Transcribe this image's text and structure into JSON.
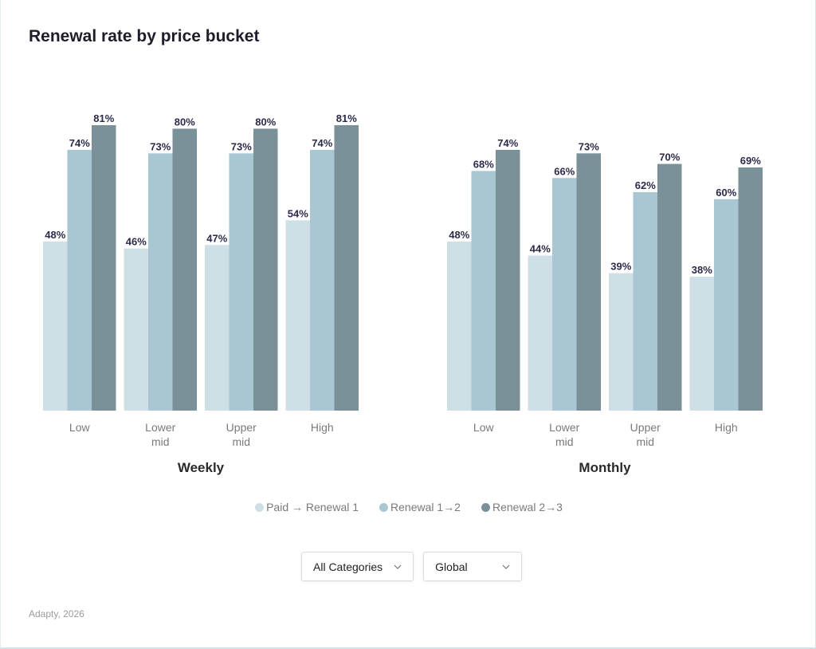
{
  "title": "Renewal rate by price bucket",
  "chart_data": [
    {
      "type": "bar",
      "subtitle": "Weekly",
      "categories": [
        "Low",
        "Lower mid",
        "Upper mid",
        "High"
      ],
      "series": [
        {
          "name": "Paid → Renewal 1",
          "color": "#cfdfe6",
          "values": [
            48,
            46,
            47,
            54
          ],
          "value_labels": [
            "48%",
            "46%",
            "47%",
            "54%"
          ]
        },
        {
          "name": "Renewal 1→2",
          "color": "#a8c7d3",
          "values": [
            74,
            73,
            73,
            74
          ],
          "value_labels": [
            "74%",
            "73%",
            "73%",
            "74%"
          ]
        },
        {
          "name": "Renewal 2→3",
          "color": "#7a9199",
          "values": [
            81,
            80,
            80,
            81
          ],
          "value_labels": [
            "81%",
            "80%",
            "80%",
            "81%"
          ]
        }
      ]
    },
    {
      "type": "bar",
      "subtitle": "Monthly",
      "categories": [
        "Low",
        "Lower mid",
        "Upper mid",
        "High"
      ],
      "series": [
        {
          "values": [
            48,
            44,
            39,
            38
          ],
          "value_labels": [
            "48%",
            "44%",
            "39%",
            "38%"
          ]
        },
        {
          "values": [
            68,
            66,
            62,
            60
          ],
          "value_labels": [
            "68%",
            "66%",
            "62%",
            "60%"
          ]
        },
        {
          "values": [
            74,
            73,
            70,
            69
          ],
          "value_labels": [
            "74%",
            "73%",
            "70%",
            "69%"
          ]
        }
      ]
    }
  ],
  "filters": [
    "All Categories",
    "Global"
  ],
  "footer": "Adapty, 2026"
}
